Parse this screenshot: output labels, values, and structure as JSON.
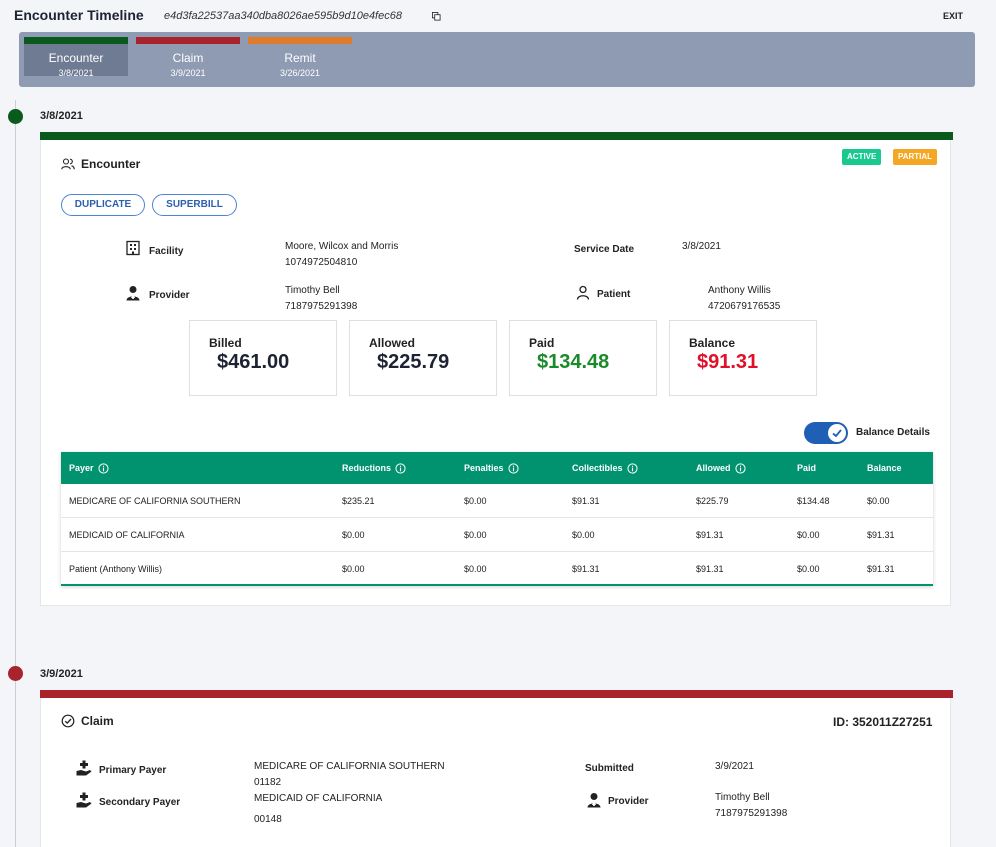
{
  "header": {
    "title": "Encounter Timeline",
    "hash": "e4d3fa22537aa340dba8026ae595b9d10e4fec68",
    "exit_label": "EXIT"
  },
  "steps": [
    {
      "label": "Encounter",
      "date": "3/8/2021",
      "color": "#0a5a1e",
      "active": true
    },
    {
      "label": "Claim",
      "date": "3/9/2021",
      "color": "#a8232b",
      "active": false
    },
    {
      "label": "Remit",
      "date": "3/26/2021",
      "color": "#e07b2c",
      "active": false
    }
  ],
  "encounter": {
    "date": "3/8/2021",
    "color": "#0a5a1e",
    "title": "Encounter",
    "badges": {
      "active": "ACTIVE",
      "partial": "PARTIAL"
    },
    "buttons": {
      "duplicate": "DUPLICATE",
      "superbill": "SUPERBILL"
    },
    "facility_label": "Facility",
    "facility_name": "Moore, Wilcox and Morris",
    "facility_id": "1074972504810",
    "provider_label": "Provider",
    "provider_name": "Timothy Bell",
    "provider_id": "7187975291398",
    "service_date_label": "Service Date",
    "service_date": "3/8/2021",
    "patient_label": "Patient",
    "patient_name": "Anthony Willis",
    "patient_id": "4720679176535",
    "amounts": {
      "billed_label": "Billed",
      "billed": "$461.00",
      "allowed_label": "Allowed",
      "allowed": "$225.79",
      "paid_label": "Paid",
      "paid": "$134.48",
      "balance_label": "Balance",
      "balance": "$91.31"
    },
    "balance_details_label": "Balance Details",
    "table": {
      "headers": {
        "payer": "Payer",
        "reductions": "Reductions",
        "penalties": "Penalties",
        "collectibles": "Collectibles",
        "allowed": "Allowed",
        "paid": "Paid",
        "balance": "Balance"
      },
      "rows": [
        {
          "payer": "MEDICARE OF CALIFORNIA SOUTHERN",
          "reductions": "$235.21",
          "penalties": "$0.00",
          "collectibles": "$91.31",
          "allowed": "$225.79",
          "paid": "$134.48",
          "balance": "$0.00"
        },
        {
          "payer": "MEDICAID OF CALIFORNIA",
          "reductions": "$0.00",
          "penalties": "$0.00",
          "collectibles": "$0.00",
          "allowed": "$91.31",
          "paid": "$0.00",
          "balance": "$91.31"
        },
        {
          "payer": "Patient (Anthony Willis)",
          "reductions": "$0.00",
          "penalties": "$0.00",
          "collectibles": "$91.31",
          "allowed": "$91.31",
          "paid": "$0.00",
          "balance": "$91.31"
        }
      ]
    }
  },
  "claim": {
    "date": "3/9/2021",
    "color": "#a8232b",
    "title": "Claim",
    "id_text": "ID: 352011Z27251",
    "primary_payer_label": "Primary Payer",
    "primary_payer_name": "MEDICARE OF CALIFORNIA SOUTHERN",
    "primary_payer_id": "01182",
    "secondary_payer_label": "Secondary Payer",
    "secondary_payer_name": "MEDICAID OF CALIFORNIA",
    "secondary_payer_id": "00148",
    "submitted_label": "Submitted",
    "submitted_date": "3/9/2021",
    "provider_label": "Provider",
    "provider_name": "Timothy Bell",
    "provider_id": "7187975291398"
  },
  "colors": {
    "active_badge": "#19c98f",
    "partial_badge": "#f5a623",
    "paid_green": "#1a8a2a",
    "balance_red": "#e0102a",
    "table_header": "#019270"
  }
}
